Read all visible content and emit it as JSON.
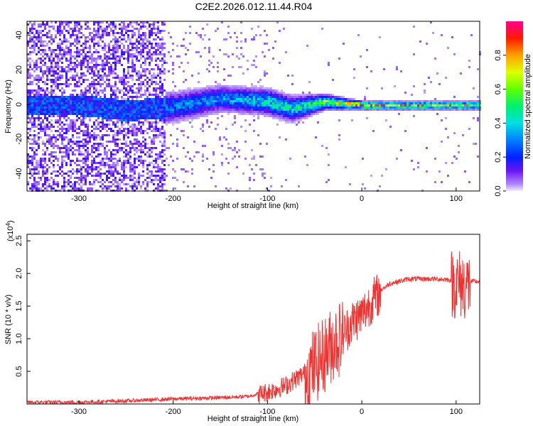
{
  "title": "C2E2.2026.012.11.44.R04",
  "chart_data": [
    {
      "type": "heatmap",
      "xlabel": "Height of straight line (km)",
      "ylabel": "Frequency (Hz)",
      "xlim": [
        -355,
        125
      ],
      "ylim": [
        -50,
        48
      ],
      "xticks": [
        -300,
        -200,
        -100,
        0,
        100
      ],
      "yticks": [
        -40,
        -20,
        0,
        20,
        40
      ],
      "colorbar": {
        "label": "Normalized spectral amplitude",
        "range": [
          0,
          1
        ],
        "ticks": [
          0.0,
          0.2,
          0.4,
          0.6,
          0.8
        ]
      },
      "description_points": [
        {
          "height_km": -300,
          "freq_center_hz": 0,
          "freq_spread_hz": 48,
          "amplitude": 0.15
        },
        {
          "height_km": -250,
          "freq_center_hz": -3,
          "freq_spread_hz": 7,
          "amplitude": 0.3
        },
        {
          "height_km": -200,
          "freq_center_hz": -1,
          "freq_spread_hz": 6,
          "amplitude": 0.3
        },
        {
          "height_km": -150,
          "freq_center_hz": 4,
          "freq_spread_hz": 5,
          "amplitude": 0.35
        },
        {
          "height_km": -100,
          "freq_center_hz": 2,
          "freq_spread_hz": 5,
          "amplitude": 0.45
        },
        {
          "height_km": -75,
          "freq_center_hz": -2,
          "freq_spread_hz": 5,
          "amplitude": 0.45
        },
        {
          "height_km": -40,
          "freq_center_hz": 2,
          "freq_spread_hz": 3,
          "amplitude": 0.6
        },
        {
          "height_km": 0,
          "freq_center_hz": 0,
          "freq_spread_hz": 1.5,
          "amplitude": 0.85
        },
        {
          "height_km": 50,
          "freq_center_hz": 0,
          "freq_spread_hz": 1.5,
          "amplitude": 0.8
        },
        {
          "height_km": 100,
          "freq_center_hz": 0,
          "freq_spread_hz": 1.5,
          "amplitude": 0.8
        }
      ]
    },
    {
      "type": "line",
      "xlabel": "Height of straight line (km)",
      "ylabel": "SNR (10 * v/v)",
      "scale_label": "(x10",
      "scale_exp": "4",
      "xlim": [
        -355,
        125
      ],
      "ylim": [
        0,
        2.6
      ],
      "xticks": [
        -300,
        -200,
        -100,
        0,
        100
      ],
      "yticks": [
        0.5,
        1.0,
        1.5,
        2.0,
        2.5
      ],
      "color": "#ee3333",
      "x": [
        -355,
        -300,
        -250,
        -200,
        -150,
        -120,
        -100,
        -80,
        -60,
        -40,
        -30,
        -20,
        -10,
        0,
        10,
        20,
        30,
        50,
        80,
        100,
        110,
        125
      ],
      "y": [
        0.03,
        0.03,
        0.05,
        0.08,
        0.1,
        0.12,
        0.2,
        0.3,
        0.5,
        0.8,
        1.0,
        1.1,
        1.3,
        1.4,
        1.6,
        1.75,
        1.85,
        1.92,
        1.92,
        1.9,
        1.88,
        1.88
      ]
    }
  ]
}
